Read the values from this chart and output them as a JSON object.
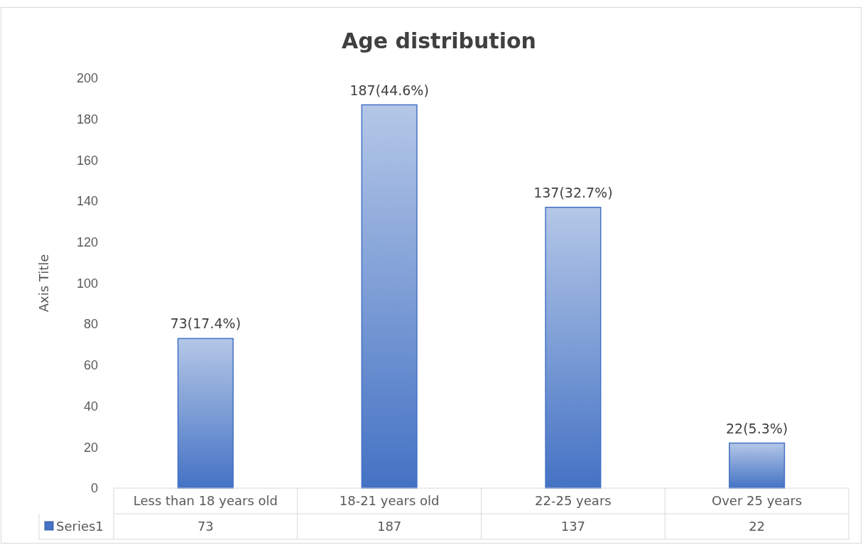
{
  "chart_data": {
    "type": "bar",
    "title": "Age distribution",
    "ylabel": "Axis Title",
    "categories": [
      "Less than 18 years old",
      "18-21 years old",
      "22-25 years",
      "Over 25 years"
    ],
    "series": [
      {
        "name": "Series1",
        "color": "#4472c4",
        "values": [
          73,
          187,
          137,
          22
        ]
      }
    ],
    "annotations": [
      {
        "text": "73(17.4%)",
        "x": "Less than 18 years old",
        "y": 73
      },
      {
        "text": "187(44.6%)",
        "x": "18-21 years old",
        "y": 187
      },
      {
        "text": "137(32.7%)",
        "x": "22-25 years",
        "y": 137
      },
      {
        "text": "22(5.3%)",
        "x": "Over 25 years",
        "y": 22
      }
    ],
    "ylim": [
      0,
      200
    ],
    "yticks": [
      0,
      20,
      40,
      60,
      80,
      100,
      120,
      140,
      160,
      180,
      200
    ],
    "grid": false,
    "legend": "bottom",
    "data_labels": true
  }
}
